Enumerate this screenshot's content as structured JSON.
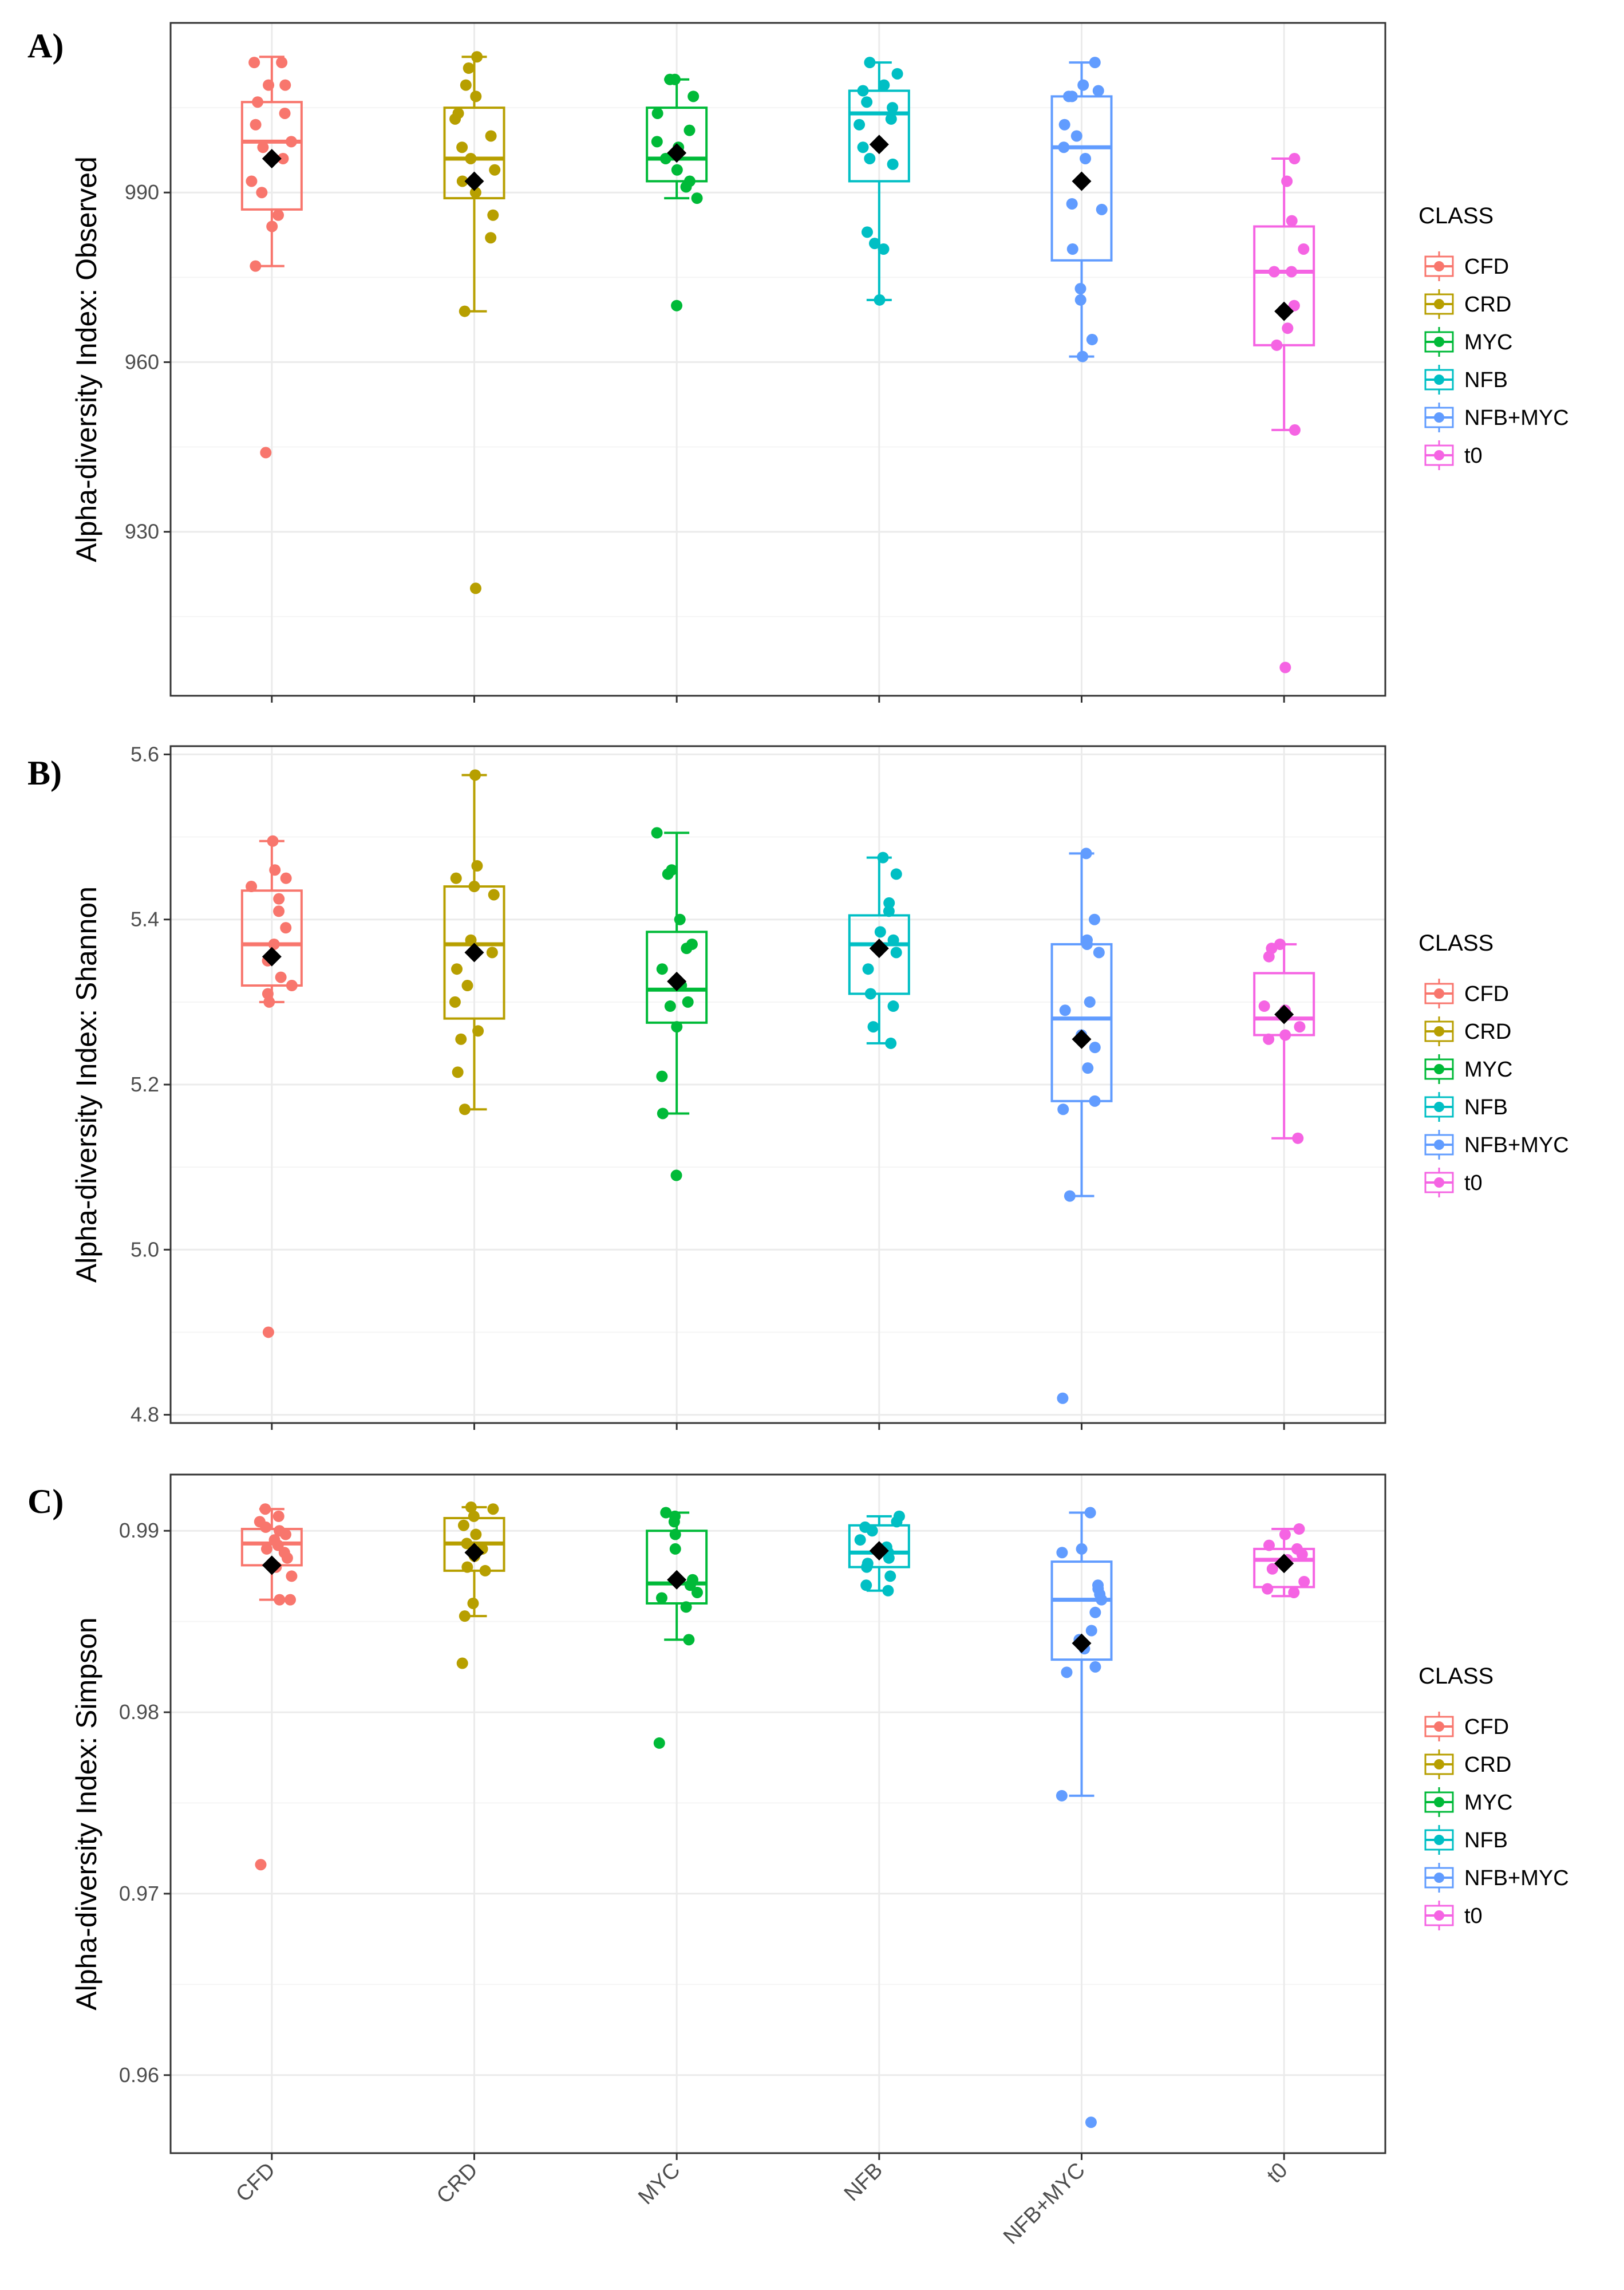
{
  "colors": {
    "CFD": "#F8766D",
    "CRD": "#B79F00",
    "MYC": "#00BA38",
    "NFB": "#00BFC4",
    "NFB+MYC": "#619CFF",
    "t0": "#F564E3",
    "mean_marker": "#000000",
    "grid_major": "#ebebeb",
    "grid_minor": "#f5f5f5"
  },
  "chart_data": [
    {
      "type": "box",
      "panel_label": "A)",
      "ylabel": "Alpha-diversity Index: Observed",
      "ylim": [
        901,
        1020
      ],
      "yticks": [
        930,
        960,
        990
      ],
      "ytick_labels": [
        "930",
        "960",
        "990"
      ],
      "grid": true,
      "legend_title": "CLASS",
      "legend_position": "right",
      "categories": [
        "CFD",
        "CRD",
        "MYC",
        "NFB",
        "NFB+MYC",
        "t0"
      ],
      "boxes": [
        {
          "class": "CFD",
          "min": 977,
          "q1": 987,
          "median": 999,
          "q3": 1006,
          "max": 1014,
          "mean": 996
        },
        {
          "class": "CRD",
          "min": 969,
          "q1": 989,
          "median": 996,
          "q3": 1005,
          "max": 1014,
          "mean": 992
        },
        {
          "class": "MYC",
          "min": 989,
          "q1": 992,
          "median": 996,
          "q3": 1005,
          "max": 1010,
          "mean": 997
        },
        {
          "class": "NFB",
          "min": 971,
          "q1": 992,
          "median": 1004,
          "q3": 1008,
          "max": 1013,
          "mean": 998.5
        },
        {
          "class": "NFB+MYC",
          "min": 961,
          "q1": 978,
          "median": 998,
          "q3": 1007,
          "max": 1013,
          "mean": 992
        },
        {
          "class": "t0",
          "min": 948,
          "q1": 963,
          "median": 976,
          "q3": 984,
          "max": 996,
          "mean": 969
        }
      ],
      "points": [
        {
          "class": "CFD",
          "values": [
            1013,
            1013,
            1009,
            1009,
            1006,
            1004,
            1002,
            999,
            998,
            996,
            992,
            990,
            986,
            984,
            977,
            944
          ]
        },
        {
          "class": "CRD",
          "values": [
            1014,
            1012,
            1009,
            1007,
            1004,
            1003,
            1000,
            998,
            996,
            994,
            992,
            990,
            986,
            982,
            969,
            920
          ]
        },
        {
          "class": "MYC",
          "values": [
            1010,
            1010,
            1007,
            1004,
            1001,
            999,
            998,
            996,
            994,
            992,
            991,
            989,
            970
          ]
        },
        {
          "class": "NFB",
          "values": [
            1013,
            1011,
            1009,
            1008,
            1006,
            1005,
            1003,
            1002,
            998,
            996,
            995,
            983,
            981,
            980,
            971
          ]
        },
        {
          "class": "NFB+MYC",
          "values": [
            1013,
            1009,
            1008,
            1007,
            1007,
            1002,
            1000,
            998,
            996,
            988,
            987,
            980,
            973,
            971,
            964,
            961
          ]
        },
        {
          "class": "t0",
          "values": [
            996,
            992,
            985,
            980,
            976,
            976,
            970,
            966,
            963,
            948,
            906
          ]
        }
      ]
    },
    {
      "type": "box",
      "panel_label": "B)",
      "ylabel": "Alpha-diversity Index: Shannon",
      "ylim": [
        4.79,
        5.61
      ],
      "yticks": [
        4.8,
        5.0,
        5.2,
        5.4,
        5.6
      ],
      "ytick_labels": [
        "4.8",
        "5.0",
        "5.2",
        "5.4",
        "5.6"
      ],
      "grid": true,
      "legend_title": "CLASS",
      "legend_position": "right",
      "categories": [
        "CFD",
        "CRD",
        "MYC",
        "NFB",
        "NFB+MYC",
        "t0"
      ],
      "boxes": [
        {
          "class": "CFD",
          "min": 5.3,
          "q1": 5.32,
          "median": 5.37,
          "q3": 5.435,
          "max": 5.495,
          "mean": 5.355
        },
        {
          "class": "CRD",
          "min": 5.17,
          "q1": 5.28,
          "median": 5.37,
          "q3": 5.44,
          "max": 5.575,
          "mean": 5.36
        },
        {
          "class": "MYC",
          "min": 5.165,
          "q1": 5.275,
          "median": 5.315,
          "q3": 5.385,
          "max": 5.505,
          "mean": 5.325
        },
        {
          "class": "NFB",
          "min": 5.25,
          "q1": 5.31,
          "median": 5.37,
          "q3": 5.405,
          "max": 5.475,
          "mean": 5.365
        },
        {
          "class": "NFB+MYC",
          "min": 5.065,
          "q1": 5.18,
          "median": 5.28,
          "q3": 5.37,
          "max": 5.48,
          "mean": 5.255
        },
        {
          "class": "t0",
          "min": 5.135,
          "q1": 5.26,
          "median": 5.28,
          "q3": 5.335,
          "max": 5.37,
          "mean": 5.285
        }
      ],
      "points": [
        {
          "class": "CFD",
          "values": [
            5.495,
            5.46,
            5.45,
            5.44,
            5.425,
            5.41,
            5.39,
            5.37,
            5.35,
            5.33,
            5.32,
            5.31,
            5.3,
            4.9
          ]
        },
        {
          "class": "CRD",
          "values": [
            5.575,
            5.465,
            5.45,
            5.44,
            5.43,
            5.375,
            5.36,
            5.34,
            5.32,
            5.3,
            5.265,
            5.255,
            5.215,
            5.17
          ]
        },
        {
          "class": "MYC",
          "values": [
            5.505,
            5.46,
            5.455,
            5.4,
            5.37,
            5.365,
            5.34,
            5.32,
            5.3,
            5.295,
            5.27,
            5.21,
            5.165,
            5.09
          ]
        },
        {
          "class": "NFB",
          "values": [
            5.475,
            5.455,
            5.42,
            5.41,
            5.385,
            5.375,
            5.36,
            5.34,
            5.31,
            5.295,
            5.27,
            5.25
          ]
        },
        {
          "class": "NFB+MYC",
          "values": [
            5.48,
            5.4,
            5.375,
            5.37,
            5.36,
            5.3,
            5.29,
            5.26,
            5.245,
            5.22,
            5.18,
            5.17,
            5.065,
            4.82
          ]
        },
        {
          "class": "t0",
          "values": [
            5.37,
            5.365,
            5.355,
            5.295,
            5.29,
            5.27,
            5.26,
            5.255,
            5.135
          ]
        }
      ]
    },
    {
      "type": "box",
      "panel_label": "C)",
      "ylabel": "Alpha-diversity Index: Simpson",
      "ylim": [
        0.9557,
        0.9931
      ],
      "yticks": [
        0.96,
        0.97,
        0.98,
        0.99
      ],
      "ytick_labels": [
        "0.96",
        "0.97",
        "0.98",
        "0.99"
      ],
      "grid": true,
      "legend_title": "CLASS",
      "legend_position": "right",
      "categories": [
        "CFD",
        "CRD",
        "MYC",
        "NFB",
        "NFB+MYC",
        "t0"
      ],
      "xlabel_ticks": [
        "CFD",
        "CRD",
        "MYC",
        "NFB",
        "NFB+MYC",
        "t0"
      ],
      "boxes": [
        {
          "class": "CFD",
          "min": 0.9862,
          "q1": 0.9881,
          "median": 0.9893,
          "q3": 0.9901,
          "max": 0.9912,
          "mean": 0.9881
        },
        {
          "class": "CRD",
          "min": 0.9853,
          "q1": 0.9878,
          "median": 0.9893,
          "q3": 0.9907,
          "max": 0.9913,
          "mean": 0.9888
        },
        {
          "class": "MYC",
          "min": 0.984,
          "q1": 0.986,
          "median": 0.9871,
          "q3": 0.99,
          "max": 0.991,
          "mean": 0.9873
        },
        {
          "class": "NFB",
          "min": 0.9867,
          "q1": 0.988,
          "median": 0.9888,
          "q3": 0.9903,
          "max": 0.9908,
          "mean": 0.9889
        },
        {
          "class": "NFB+MYC",
          "min": 0.9754,
          "q1": 0.9829,
          "median": 0.9862,
          "q3": 0.9883,
          "max": 0.991,
          "mean": 0.9838
        },
        {
          "class": "t0",
          "min": 0.9864,
          "q1": 0.9869,
          "median": 0.9884,
          "q3": 0.989,
          "max": 0.9901,
          "mean": 0.9882
        }
      ],
      "points": [
        {
          "class": "CFD",
          "values": [
            0.9912,
            0.9908,
            0.9905,
            0.9902,
            0.99,
            0.9898,
            0.9895,
            0.9892,
            0.989,
            0.9888,
            0.9885,
            0.988,
            0.9875,
            0.9862,
            0.9862,
            0.9716
          ]
        },
        {
          "class": "CRD",
          "values": [
            0.9913,
            0.9912,
            0.9908,
            0.9903,
            0.9898,
            0.9893,
            0.989,
            0.9886,
            0.988,
            0.9878,
            0.986,
            0.9853,
            0.9827
          ]
        },
        {
          "class": "MYC",
          "values": [
            0.991,
            0.9908,
            0.9905,
            0.9898,
            0.989,
            0.9873,
            0.987,
            0.9866,
            0.9863,
            0.9858,
            0.984,
            0.9783
          ]
        },
        {
          "class": "NFB",
          "values": [
            0.9908,
            0.9905,
            0.9902,
            0.99,
            0.9895,
            0.9891,
            0.9888,
            0.9885,
            0.9882,
            0.988,
            0.9875,
            0.987,
            0.9867
          ]
        },
        {
          "class": "NFB+MYC",
          "values": [
            0.991,
            0.989,
            0.9888,
            0.987,
            0.9868,
            0.9865,
            0.9862,
            0.9855,
            0.9845,
            0.984,
            0.9835,
            0.9825,
            0.9822,
            0.9754,
            0.9574
          ]
        },
        {
          "class": "t0",
          "values": [
            0.9901,
            0.9898,
            0.9892,
            0.989,
            0.9887,
            0.9884,
            0.9879,
            0.9872,
            0.9868,
            0.9866
          ]
        }
      ]
    }
  ]
}
